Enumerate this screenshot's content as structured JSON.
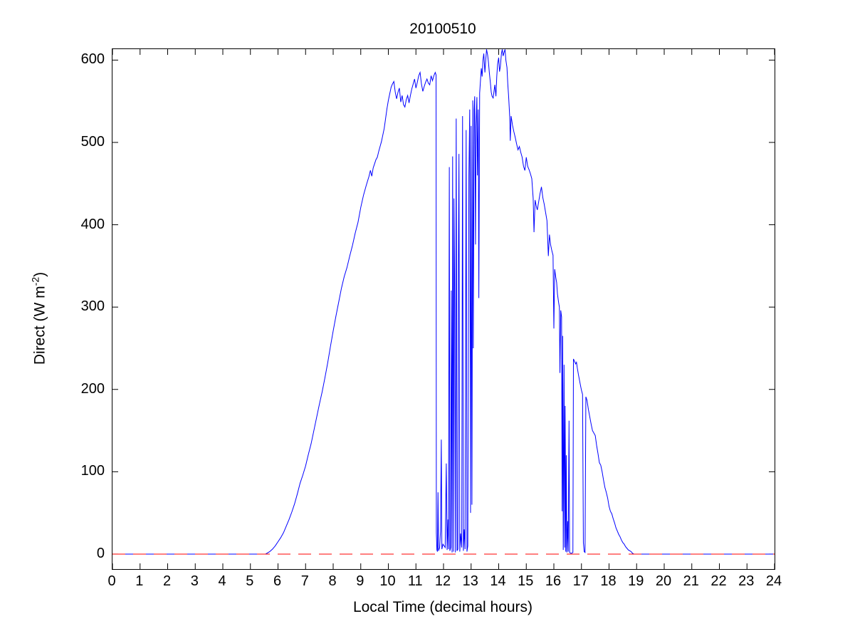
{
  "figure": {
    "background": "#ffffff",
    "axes_box_color": "#000000"
  },
  "labels": {
    "title": "20100510",
    "xlabel": "Local Time (decimal hours)",
    "ylabel_main": "Direct (W m",
    "ylabel_sup": "-2",
    "ylabel_close": ")"
  },
  "chart_data": {
    "type": "line",
    "title": "20100510",
    "xlabel": "Local Time (decimal hours)",
    "ylabel": "Direct (W m^-2)",
    "grid": false,
    "legend": "none",
    "xlim": [
      0,
      24
    ],
    "ylim": [
      -18.2,
      613.3
    ],
    "x_ticks": [
      0,
      1,
      2,
      3,
      4,
      5,
      6,
      7,
      8,
      9,
      10,
      11,
      12,
      13,
      14,
      15,
      16,
      17,
      18,
      19,
      20,
      21,
      22,
      23,
      24
    ],
    "x_tick_labels": [
      "0",
      "1",
      "2",
      "3",
      "4",
      "5",
      "6",
      "7",
      "8",
      "9",
      "10",
      "11",
      "12",
      "13",
      "14",
      "15",
      "16",
      "17",
      "18",
      "19",
      "20",
      "21",
      "22",
      "23",
      "24"
    ],
    "y_ticks": [
      0,
      100,
      200,
      300,
      400,
      500,
      600
    ],
    "y_tick_labels": [
      "0",
      "100",
      "200",
      "300",
      "400",
      "500",
      "600"
    ],
    "tick_style": "inward, mirrored on all four sides",
    "series": [
      {
        "name": "direct-irradiance",
        "color": "#0000FF",
        "style": "solid",
        "points": [
          [
            0,
            0
          ],
          [
            0.5,
            0
          ],
          [
            1,
            0
          ],
          [
            1.5,
            0
          ],
          [
            2,
            0
          ],
          [
            2.5,
            0
          ],
          [
            3,
            0
          ],
          [
            3.5,
            0
          ],
          [
            4,
            0
          ],
          [
            4.5,
            0
          ],
          [
            5,
            0
          ],
          [
            5.3,
            0
          ],
          [
            5.55,
            0
          ],
          [
            5.6,
            1
          ],
          [
            5.7,
            3
          ],
          [
            5.8,
            6
          ],
          [
            5.9,
            10
          ],
          [
            6.0,
            15
          ],
          [
            6.1,
            20
          ],
          [
            6.2,
            26
          ],
          [
            6.3,
            34
          ],
          [
            6.4,
            42
          ],
          [
            6.5,
            51
          ],
          [
            6.6,
            61
          ],
          [
            6.7,
            73
          ],
          [
            6.8,
            86
          ],
          [
            6.9,
            96
          ],
          [
            7.0,
            107
          ],
          [
            7.1,
            121
          ],
          [
            7.2,
            134
          ],
          [
            7.3,
            150
          ],
          [
            7.4,
            166
          ],
          [
            7.5,
            182
          ],
          [
            7.6,
            197
          ],
          [
            7.7,
            214
          ],
          [
            7.8,
            232
          ],
          [
            7.9,
            252
          ],
          [
            8.0,
            271
          ],
          [
            8.1,
            289
          ],
          [
            8.2,
            306
          ],
          [
            8.3,
            323
          ],
          [
            8.4,
            337
          ],
          [
            8.5,
            348
          ],
          [
            8.6,
            362
          ],
          [
            8.7,
            375
          ],
          [
            8.8,
            390
          ],
          [
            8.9,
            403
          ],
          [
            9.0,
            421
          ],
          [
            9.1,
            436
          ],
          [
            9.2,
            448
          ],
          [
            9.3,
            459
          ],
          [
            9.35,
            466
          ],
          [
            9.4,
            459
          ],
          [
            9.45,
            469
          ],
          [
            9.5,
            474
          ],
          [
            9.55,
            479
          ],
          [
            9.6,
            482
          ],
          [
            9.65,
            489
          ],
          [
            9.7,
            495
          ],
          [
            9.75,
            501
          ],
          [
            9.8,
            509
          ],
          [
            9.85,
            517
          ],
          [
            9.9,
            529
          ],
          [
            9.95,
            541
          ],
          [
            10.0,
            551
          ],
          [
            10.05,
            559
          ],
          [
            10.1,
            567
          ],
          [
            10.15,
            571
          ],
          [
            10.2,
            574
          ],
          [
            10.25,
            561
          ],
          [
            10.3,
            553
          ],
          [
            10.35,
            561
          ],
          [
            10.4,
            566
          ],
          [
            10.45,
            549
          ],
          [
            10.5,
            557
          ],
          [
            10.55,
            546
          ],
          [
            10.6,
            543
          ],
          [
            10.65,
            552
          ],
          [
            10.7,
            557
          ],
          [
            10.75,
            548
          ],
          [
            10.8,
            557
          ],
          [
            10.85,
            565
          ],
          [
            10.9,
            571
          ],
          [
            10.95,
            577
          ],
          [
            11.0,
            566
          ],
          [
            11.05,
            573
          ],
          [
            11.1,
            581
          ],
          [
            11.15,
            585
          ],
          [
            11.2,
            571
          ],
          [
            11.25,
            562
          ],
          [
            11.3,
            568
          ],
          [
            11.35,
            573
          ],
          [
            11.4,
            577
          ],
          [
            11.45,
            572
          ],
          [
            11.5,
            570
          ],
          [
            11.55,
            581
          ],
          [
            11.6,
            575
          ],
          [
            11.65,
            581
          ],
          [
            11.7,
            585
          ],
          [
            11.73,
            582
          ],
          [
            11.74,
            26
          ],
          [
            11.76,
            5
          ],
          [
            11.78,
            3
          ],
          [
            11.8,
            75
          ],
          [
            11.82,
            4
          ],
          [
            11.86,
            8
          ],
          [
            11.89,
            28
          ],
          [
            11.92,
            139
          ],
          [
            11.94,
            6
          ],
          [
            11.98,
            12
          ],
          [
            12.02,
            10
          ],
          [
            12.06,
            8
          ],
          [
            12.1,
            110
          ],
          [
            12.13,
            5
          ],
          [
            12.16,
            42
          ],
          [
            12.18,
            6
          ],
          [
            12.21,
            470
          ],
          [
            12.23,
            4
          ],
          [
            12.26,
            8
          ],
          [
            12.28,
            320
          ],
          [
            12.31,
            2
          ],
          [
            12.33,
            483
          ],
          [
            12.36,
            3
          ],
          [
            12.38,
            432
          ],
          [
            12.4,
            340
          ],
          [
            12.43,
            2
          ],
          [
            12.46,
            529
          ],
          [
            12.49,
            4
          ],
          [
            12.52,
            6
          ],
          [
            12.54,
            350
          ],
          [
            12.56,
            486
          ],
          [
            12.59,
            3
          ],
          [
            12.62,
            25
          ],
          [
            12.66,
            8
          ],
          [
            12.69,
            532
          ],
          [
            12.72,
            4
          ],
          [
            12.75,
            30
          ],
          [
            12.78,
            6
          ],
          [
            12.82,
            515
          ],
          [
            12.85,
            3
          ],
          [
            12.88,
            10
          ],
          [
            12.92,
            460
          ],
          [
            12.95,
            540
          ],
          [
            12.98,
            50
          ],
          [
            13.0,
            520
          ],
          [
            13.03,
            60
          ],
          [
            13.06,
            551
          ],
          [
            13.08,
            250
          ],
          [
            13.11,
            540
          ],
          [
            13.13,
            556
          ],
          [
            13.16,
            376
          ],
          [
            13.18,
            520
          ],
          [
            13.21,
            555
          ],
          [
            13.23,
            460
          ],
          [
            13.26,
            540
          ],
          [
            13.28,
            311
          ],
          [
            13.31,
            560
          ],
          [
            13.34,
            575
          ],
          [
            13.37,
            590
          ],
          [
            13.4,
            580
          ],
          [
            13.43,
            600
          ],
          [
            13.46,
            608
          ],
          [
            13.5,
            585
          ],
          [
            13.53,
            600
          ],
          [
            13.56,
            613
          ],
          [
            13.6,
            606
          ],
          [
            13.63,
            597
          ],
          [
            13.66,
            585
          ],
          [
            13.7,
            572
          ],
          [
            13.73,
            561
          ],
          [
            13.76,
            556
          ],
          [
            13.8,
            554
          ],
          [
            13.83,
            562
          ],
          [
            13.86,
            570
          ],
          [
            13.9,
            556
          ],
          [
            13.93,
            580
          ],
          [
            13.96,
            595
          ],
          [
            14.0,
            603
          ],
          [
            14.03,
            586
          ],
          [
            14.06,
            592
          ],
          [
            14.1,
            608
          ],
          [
            14.13,
            613
          ],
          [
            14.16,
            605
          ],
          [
            14.2,
            610
          ],
          [
            14.23,
            613
          ],
          [
            14.26,
            600
          ],
          [
            14.3,
            591
          ],
          [
            14.33,
            571
          ],
          [
            14.36,
            556
          ],
          [
            14.4,
            531
          ],
          [
            14.42,
            502
          ],
          [
            14.45,
            532
          ],
          [
            14.5,
            521
          ],
          [
            14.55,
            513
          ],
          [
            14.6,
            506
          ],
          [
            14.65,
            498
          ],
          [
            14.7,
            491
          ],
          [
            14.75,
            495
          ],
          [
            14.8,
            488
          ],
          [
            14.85,
            482
          ],
          [
            14.9,
            471
          ],
          [
            14.95,
            466
          ],
          [
            15.0,
            482
          ],
          [
            15.05,
            471
          ],
          [
            15.1,
            467
          ],
          [
            15.15,
            462
          ],
          [
            15.2,
            456
          ],
          [
            15.25,
            432
          ],
          [
            15.28,
            391
          ],
          [
            15.32,
            430
          ],
          [
            15.36,
            423
          ],
          [
            15.4,
            418
          ],
          [
            15.45,
            428
          ],
          [
            15.5,
            438
          ],
          [
            15.55,
            446
          ],
          [
            15.6,
            433
          ],
          [
            15.65,
            425
          ],
          [
            15.7,
            415
          ],
          [
            15.75,
            405
          ],
          [
            15.8,
            362
          ],
          [
            15.84,
            388
          ],
          [
            15.88,
            376
          ],
          [
            15.93,
            368
          ],
          [
            15.97,
            363
          ],
          [
            16.0,
            274
          ],
          [
            16.03,
            346
          ],
          [
            16.07,
            336
          ],
          [
            16.1,
            330
          ],
          [
            16.13,
            316
          ],
          [
            16.17,
            306
          ],
          [
            16.2,
            300
          ],
          [
            16.22,
            220
          ],
          [
            16.25,
            296
          ],
          [
            16.28,
            288
          ],
          [
            16.3,
            52
          ],
          [
            16.32,
            265
          ],
          [
            16.34,
            5
          ],
          [
            16.37,
            230
          ],
          [
            16.39,
            8
          ],
          [
            16.41,
            180
          ],
          [
            16.43,
            3
          ],
          [
            16.45,
            120
          ],
          [
            16.47,
            2
          ],
          [
            16.5,
            40
          ],
          [
            16.52,
            3
          ],
          [
            16.55,
            162
          ],
          [
            16.57,
            2
          ],
          [
            16.61,
            1
          ],
          [
            16.65,
            1
          ],
          [
            16.69,
            2
          ],
          [
            16.71,
            237
          ],
          [
            16.75,
            234
          ],
          [
            16.79,
            231
          ],
          [
            16.82,
            233
          ],
          [
            16.85,
            226
          ],
          [
            16.89,
            218
          ],
          [
            16.93,
            211
          ],
          [
            16.97,
            204
          ],
          [
            17.0,
            199
          ],
          [
            17.04,
            194
          ],
          [
            17.07,
            14
          ],
          [
            17.1,
            3
          ],
          [
            17.13,
            2
          ],
          [
            17.16,
            191
          ],
          [
            17.2,
            187
          ],
          [
            17.25,
            176
          ],
          [
            17.3,
            167
          ],
          [
            17.35,
            158
          ],
          [
            17.4,
            150
          ],
          [
            17.45,
            147
          ],
          [
            17.5,
            144
          ],
          [
            17.55,
            132
          ],
          [
            17.6,
            122
          ],
          [
            17.65,
            111
          ],
          [
            17.7,
            108
          ],
          [
            17.75,
            100
          ],
          [
            17.8,
            90
          ],
          [
            17.85,
            81
          ],
          [
            17.9,
            75
          ],
          [
            17.95,
            68
          ],
          [
            18.0,
            58
          ],
          [
            18.05,
            52
          ],
          [
            18.1,
            49
          ],
          [
            18.15,
            43
          ],
          [
            18.2,
            38
          ],
          [
            18.25,
            32
          ],
          [
            18.3,
            28
          ],
          [
            18.35,
            24
          ],
          [
            18.4,
            21
          ],
          [
            18.45,
            17
          ],
          [
            18.5,
            14
          ],
          [
            18.55,
            12
          ],
          [
            18.6,
            9
          ],
          [
            18.65,
            7
          ],
          [
            18.7,
            5
          ],
          [
            18.75,
            4
          ],
          [
            18.8,
            3
          ],
          [
            18.85,
            1
          ],
          [
            18.9,
            0
          ],
          [
            19.0,
            0
          ],
          [
            19.5,
            0
          ],
          [
            20,
            0
          ],
          [
            20.5,
            0
          ],
          [
            21,
            0
          ],
          [
            21.5,
            0
          ],
          [
            22,
            0
          ],
          [
            22.5,
            0
          ],
          [
            23,
            0
          ],
          [
            23.5,
            0
          ],
          [
            24,
            0
          ]
        ]
      },
      {
        "name": "zero-reference-line",
        "color": "#FF0000",
        "style": "dashed",
        "points": [
          [
            0,
            0
          ],
          [
            24,
            0
          ]
        ]
      }
    ]
  }
}
